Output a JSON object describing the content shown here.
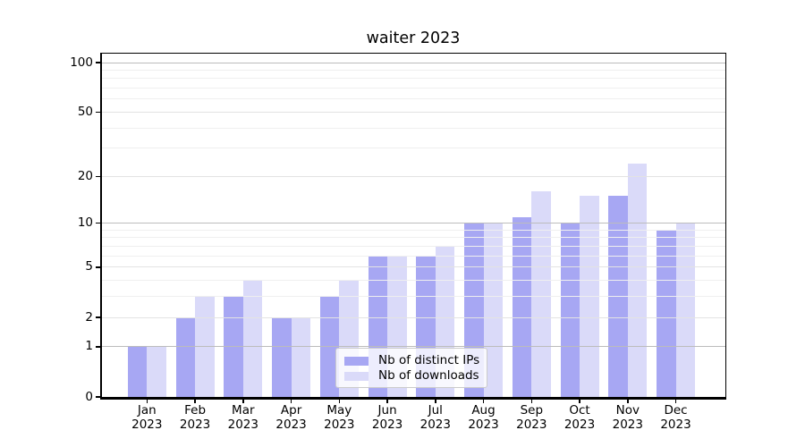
{
  "chart_data": {
    "type": "bar",
    "title": "waiter 2023",
    "categories": [
      "Jan 2023",
      "Feb 2023",
      "Mar 2023",
      "Apr 2023",
      "May 2023",
      "Jun 2023",
      "Jul 2023",
      "Aug 2023",
      "Sep 2023",
      "Oct 2023",
      "Nov 2023",
      "Dec 2023"
    ],
    "series": [
      {
        "name": "Nb of distinct IPs",
        "color": "#a7a7f3",
        "values": [
          1,
          2,
          3,
          2,
          3,
          6,
          6,
          10,
          11,
          10,
          15,
          9
        ]
      },
      {
        "name": "Nb of downloads",
        "color": "#dadaf9",
        "values": [
          1,
          3,
          4,
          2,
          4,
          6,
          7,
          10,
          16,
          15,
          24,
          10
        ]
      }
    ],
    "xlabel": "",
    "ylabel": "",
    "yscale": "log1p",
    "ylim": [
      0,
      113
    ],
    "ytick_labels": [
      "100",
      "50",
      "20",
      "10",
      "5",
      "2",
      "1",
      "0"
    ],
    "yticks": [
      100,
      50,
      20,
      10,
      5,
      2,
      1,
      0
    ],
    "decade_gridlines": [
      1,
      10,
      100
    ],
    "minor_gridlines": [
      3,
      4,
      6,
      7,
      8,
      9,
      30,
      40,
      60,
      70,
      80,
      90
    ],
    "grid": true,
    "legend_position": "lower center"
  },
  "colors": {
    "bar_distinct_ips": "#a7a7f3",
    "bar_downloads": "#dadaf9",
    "grid_decade": "#bcbcbc",
    "grid_major": "#e3e3e3",
    "grid_minor": "#efefef",
    "axis": "#000000",
    "legend_border": "#cbcbcb",
    "background": "#ffffff"
  }
}
